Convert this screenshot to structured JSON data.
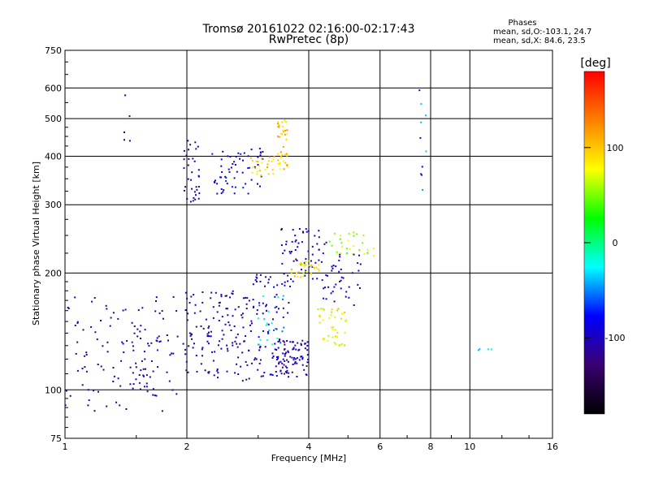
{
  "chart_data": {
    "type": "scatter",
    "title": "Tromsø 20161022 02:16:00-02:17:43",
    "subtitle": "RwPretec (8p)",
    "xlabel": "Frequency [MHz]",
    "ylabel": "Stationary phase Virtual Height [km]",
    "x_scale": "log2",
    "y_scale": "log",
    "xlim": [
      1,
      16
    ],
    "ylim": [
      75,
      750
    ],
    "x_ticks": [
      1,
      2,
      4,
      6,
      8,
      10,
      16
    ],
    "y_ticks": [
      75,
      100,
      200,
      300,
      400,
      500,
      600,
      750
    ],
    "grid": true,
    "phase_legend": {
      "title": "Phases",
      "line1": "mean, sd,O:-103.1, 24.7",
      "line2": "mean, sd,X:  84.6, 23.5"
    },
    "colorbar": {
      "label": "[deg]",
      "range": [
        -180,
        180
      ],
      "ticks": [
        100,
        0,
        -100
      ],
      "stops": [
        "#000000",
        "#3a006f",
        "#0000ff",
        "#00ffff",
        "#00ff00",
        "#ffff00",
        "#ff8000",
        "#ff0000"
      ]
    },
    "clusters": [
      {
        "fmin": 1.0,
        "fmax": 1.9,
        "hmin": 88,
        "hmax": 175,
        "phase": -115,
        "n": 110
      },
      {
        "fmin": 1.45,
        "fmax": 1.75,
        "hmin": 100,
        "hmax": 150,
        "phase": -95,
        "n": 25
      },
      {
        "fmin": 1.95,
        "fmax": 2.9,
        "hmin": 105,
        "hmax": 180,
        "phase": -110,
        "n": 140
      },
      {
        "fmin": 2.9,
        "fmax": 3.6,
        "hmin": 108,
        "hmax": 200,
        "phase": -100,
        "n": 90
      },
      {
        "fmin": 3.0,
        "fmax": 3.5,
        "hmin": 130,
        "hmax": 175,
        "phase": -40,
        "n": 25
      },
      {
        "fmin": 3.3,
        "fmax": 4.0,
        "hmin": 108,
        "hmax": 135,
        "phase": -105,
        "n": 70
      },
      {
        "fmin": 3.4,
        "fmax": 4.5,
        "hmin": 190,
        "hmax": 260,
        "phase": -100,
        "n": 60
      },
      {
        "fmin": 3.6,
        "fmax": 4.3,
        "hmin": 195,
        "hmax": 215,
        "phase": 85,
        "n": 30
      },
      {
        "fmin": 4.2,
        "fmax": 5.0,
        "hmin": 130,
        "hmax": 165,
        "phase": 80,
        "n": 45
      },
      {
        "fmin": 4.5,
        "fmax": 5.8,
        "hmin": 220,
        "hmax": 255,
        "phase": 60,
        "n": 30
      },
      {
        "fmin": 4.3,
        "fmax": 5.4,
        "hmin": 165,
        "hmax": 225,
        "phase": -100,
        "n": 40
      },
      {
        "fmin": 1.95,
        "fmax": 2.15,
        "hmin": 305,
        "hmax": 440,
        "phase": -105,
        "n": 35
      },
      {
        "fmin": 2.3,
        "fmax": 3.1,
        "hmin": 320,
        "hmax": 420,
        "phase": -90,
        "n": 60
      },
      {
        "fmin": 2.8,
        "fmax": 3.3,
        "hmin": 350,
        "hmax": 400,
        "phase": 95,
        "n": 25
      },
      {
        "fmin": 3.35,
        "fmax": 3.55,
        "hmin": 370,
        "hmax": 500,
        "phase": 100,
        "n": 45
      },
      {
        "fmin": 1.4,
        "fmax": 1.45,
        "hmin": 410,
        "hmax": 580,
        "phase": -115,
        "n": 5
      },
      {
        "fmin": 7.5,
        "fmax": 7.8,
        "hmin": 270,
        "hmax": 610,
        "phase": -60,
        "n": 10
      },
      {
        "fmin": 10.5,
        "fmax": 11.5,
        "hmin": 125,
        "hmax": 128,
        "phase": -30,
        "n": 4
      }
    ]
  }
}
